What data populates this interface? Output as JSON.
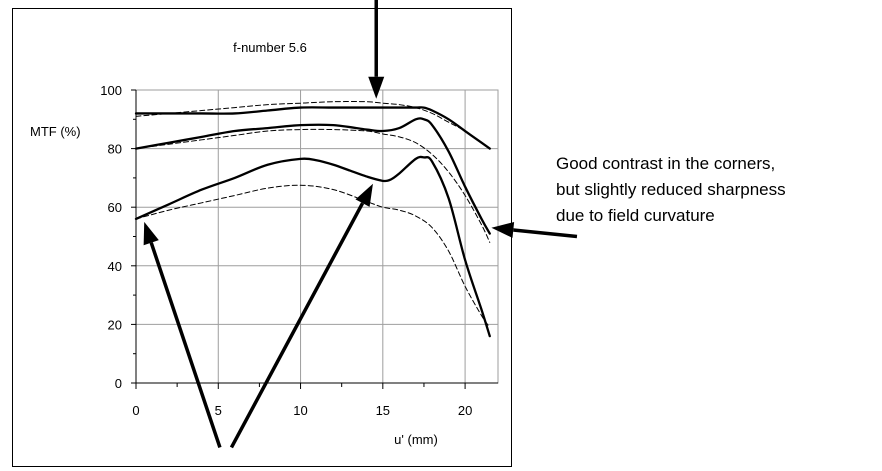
{
  "colors": {
    "line": "#000000",
    "grid": "#9e9e9e",
    "frame": "#000000",
    "background": "#ffffff"
  },
  "chart_data": {
    "type": "line",
    "title": "f-number 5.6",
    "xlabel": "u' (mm)",
    "ylabel": "MTF (%)",
    "xlim": [
      0,
      22
    ],
    "ylim": [
      0,
      100
    ],
    "x_ticks": [
      0,
      5,
      10,
      15,
      20
    ],
    "y_ticks": [
      0,
      20,
      40,
      60,
      80,
      100
    ],
    "grid": true,
    "annotation": "Good contrast in the corners, but slightly reduced sharpness due to field curvature",
    "annotation_lines": [
      "Good contrast in the corners,",
      "but slightly reduced sharpness",
      "due to field curvature"
    ],
    "series": [
      {
        "style": "solid",
        "x": [
          0,
          2,
          4,
          6,
          8,
          10,
          12,
          14,
          15,
          16,
          17,
          17.5,
          18,
          19,
          20,
          21,
          21.5
        ],
        "y": [
          92,
          92,
          92,
          92,
          93,
          94,
          94,
          94,
          94,
          94,
          94,
          94,
          93,
          90,
          86,
          82,
          80
        ]
      },
      {
        "style": "dashed",
        "x": [
          0,
          2,
          4,
          6,
          8,
          10,
          12,
          14,
          15,
          16,
          17,
          18,
          19,
          20,
          21,
          21.5
        ],
        "y": [
          91,
          92,
          93,
          94,
          95,
          95.5,
          96,
          96,
          95.5,
          95,
          94,
          92,
          89,
          86,
          82,
          80
        ]
      },
      {
        "style": "solid",
        "x": [
          0,
          2,
          4,
          6,
          8,
          10,
          12,
          14,
          15,
          16,
          17,
          17.5,
          18,
          19,
          20,
          21,
          21.5
        ],
        "y": [
          80,
          82,
          84,
          86,
          87,
          88,
          88,
          86.5,
          86,
          87,
          90,
          90,
          88,
          79,
          67,
          56,
          51
        ]
      },
      {
        "style": "dashed",
        "x": [
          0,
          2,
          4,
          6,
          8,
          10,
          12,
          14,
          15,
          16,
          17,
          18,
          19,
          20,
          21,
          21.5
        ],
        "y": [
          80,
          81.5,
          83,
          84.5,
          86,
          86.5,
          86.5,
          86,
          85,
          84,
          82,
          78,
          72,
          64,
          54,
          48
        ]
      },
      {
        "style": "solid",
        "x": [
          0,
          2,
          4,
          6,
          8,
          10,
          11,
          12,
          13,
          14,
          15,
          15.5,
          16,
          17,
          17.5,
          18,
          19,
          20,
          21,
          21.5
        ],
        "y": [
          56,
          61,
          66,
          70,
          74.5,
          76.5,
          76,
          74.5,
          72.5,
          70.5,
          69,
          69.5,
          71.5,
          76.5,
          77,
          75.5,
          63,
          42,
          25,
          16
        ]
      },
      {
        "style": "dashed",
        "x": [
          0,
          2,
          4,
          6,
          8,
          10,
          12,
          14,
          15,
          16,
          17,
          18,
          19,
          20,
          21,
          21.5
        ],
        "y": [
          56,
          59,
          61.5,
          64,
          66.5,
          67.5,
          66,
          62,
          60,
          59,
          57,
          53,
          45,
          33,
          23,
          19
        ]
      }
    ],
    "arrows": [
      {
        "from": [
          14.6,
          136
        ],
        "to": [
          14.6,
          97
        ]
      },
      {
        "from": [
          26.8,
          50
        ],
        "to": [
          21.6,
          53
        ]
      },
      {
        "from": [
          5.1,
          -22
        ],
        "to": [
          0.5,
          55
        ]
      },
      {
        "from": [
          5.8,
          -22
        ],
        "to": [
          14.4,
          68
        ]
      }
    ]
  }
}
